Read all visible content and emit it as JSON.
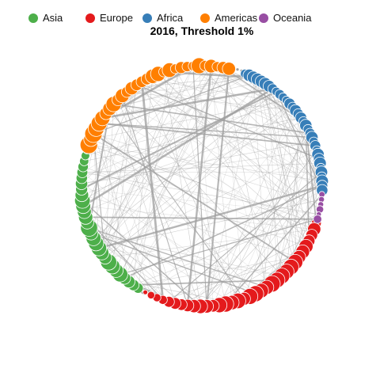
{
  "title": "2016, Threshold 1%",
  "legend": [
    {
      "label": "Asia",
      "color": "#4daf4a"
    },
    {
      "label": "Europe",
      "color": "#e41a1c"
    },
    {
      "label": "Africa",
      "color": "#377eb8"
    },
    {
      "label": "Americas",
      "color": "#ff7f00"
    },
    {
      "label": "Oceania",
      "color": "#984ea3"
    }
  ],
  "edge_color": "#9e9e9e"
}
